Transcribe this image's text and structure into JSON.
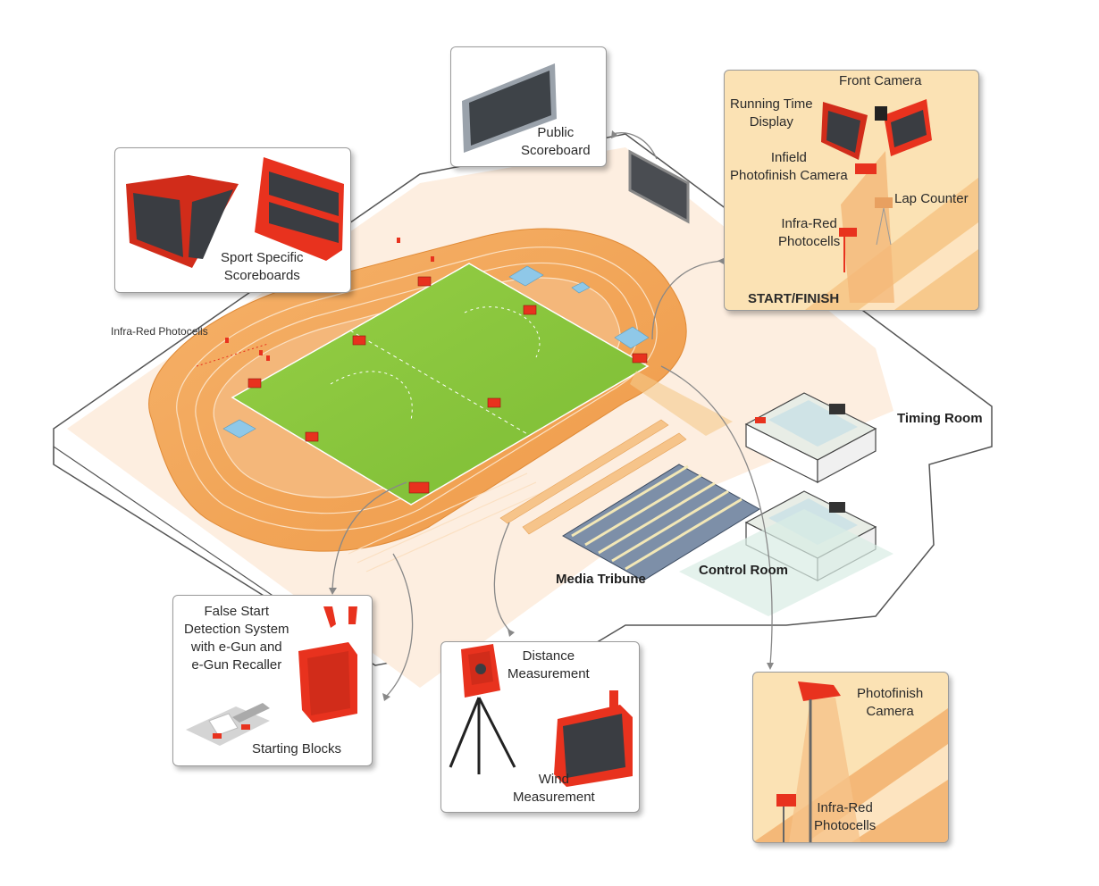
{
  "callouts": {
    "public_scoreboard": [
      "Public",
      "Scoreboard"
    ],
    "sport_scoreboards": [
      "Sport Specific",
      "Scoreboards"
    ],
    "finish": {
      "front_camera": "Front Camera",
      "running_time_display": [
        "Running Time",
        "Display"
      ],
      "infield_camera": [
        "Infield",
        "Photofinish Camera"
      ],
      "lap_counter": "Lap Counter",
      "infrared": [
        "Infra-Red",
        "Photocells"
      ],
      "start_finish": "START/FINISH"
    },
    "false_start": [
      "False Start",
      "Detection  System",
      "with e-Gun and",
      "e-Gun Recaller"
    ],
    "starting_blocks": "Starting Blocks",
    "distance": [
      "Distance",
      "Measurement"
    ],
    "wind": [
      "Wind",
      "Measurement"
    ],
    "photofinish": {
      "camera": [
        "Photofinish",
        "Camera"
      ],
      "infrared": [
        "Infra-Red",
        "Photocells"
      ]
    }
  },
  "scene_labels": {
    "infrared_photocells": "Infra-Red Photocells",
    "timing_room": "Timing Room",
    "control_room": "Control Room",
    "media_tribune": "Media Tribune"
  },
  "colors": {
    "track": "#f2a65a",
    "track_dark": "#e8903c",
    "field": "#8cc63f",
    "equipment_red": "#e8321e",
    "platform": "#f4f4f4",
    "card_orange": "#fbe2b4"
  }
}
